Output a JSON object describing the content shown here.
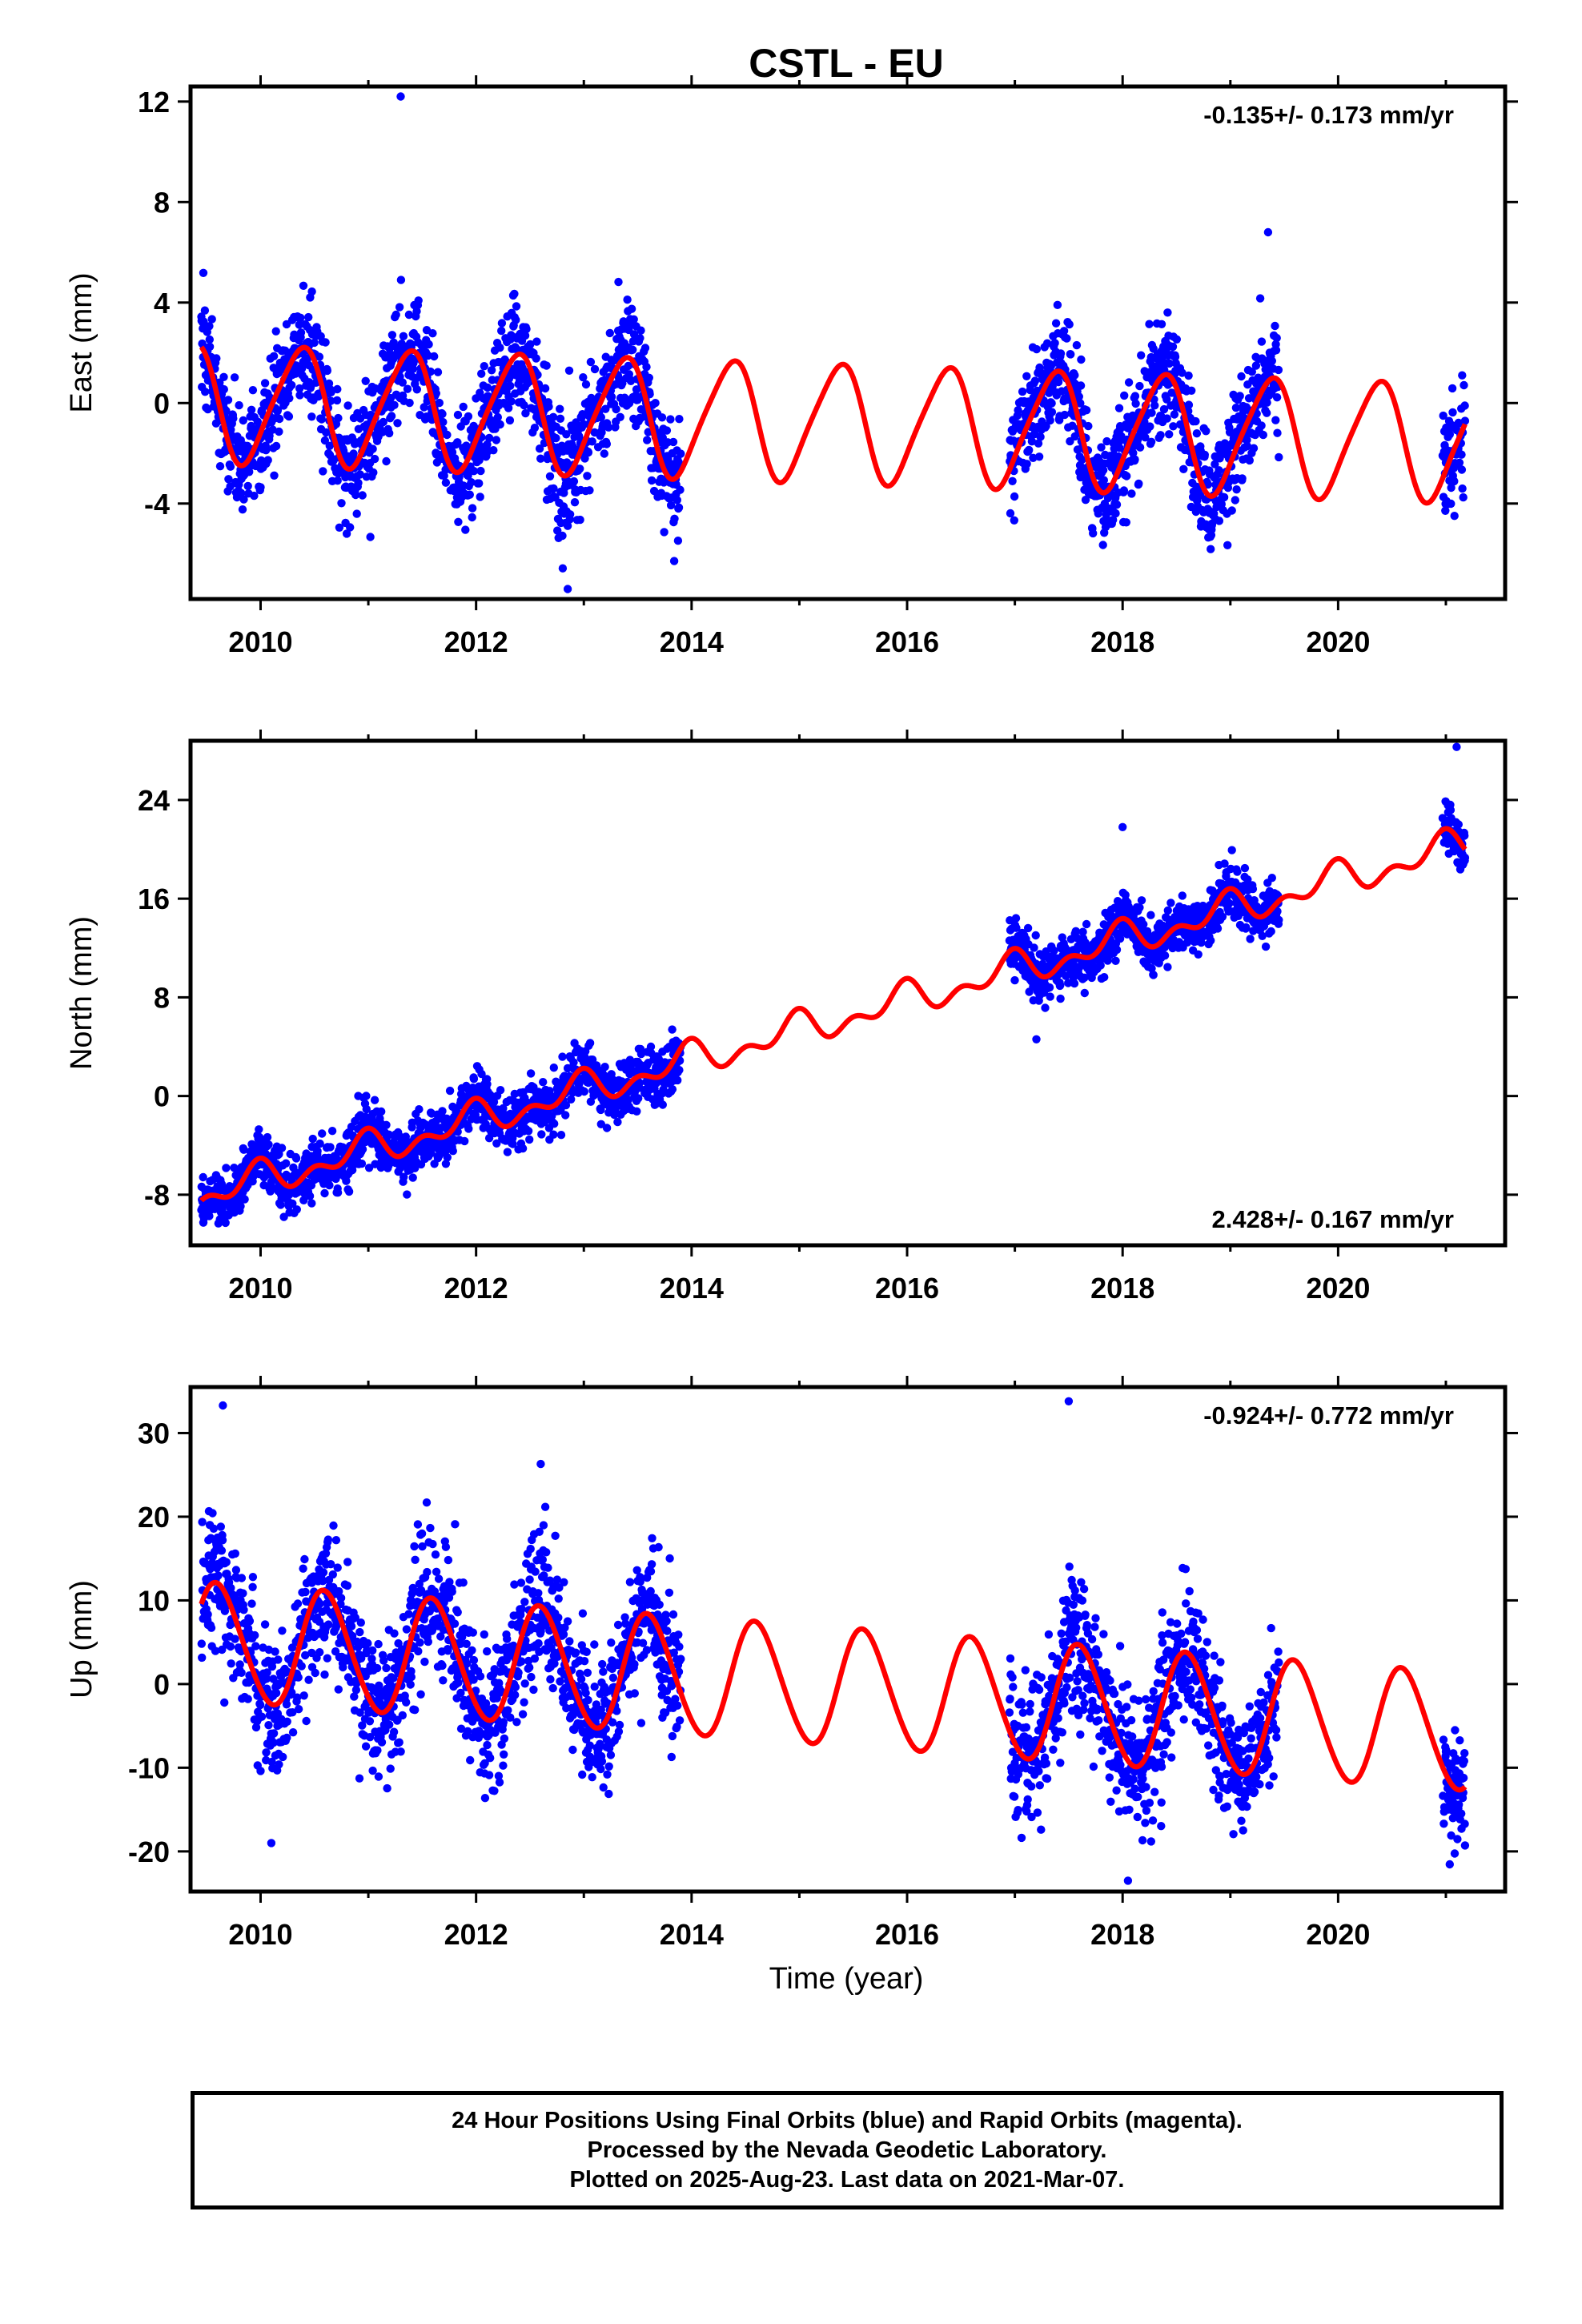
{
  "figure": {
    "title": "CSTL - EU",
    "xlabel": "Time (year)",
    "footer": [
      "24 Hour Positions Using Final Orbits (blue) and Rapid Orbits (magenta).",
      "Processed by the Nevada Geodetic Laboratory.",
      "Plotted on 2025-Aug-23. Last data on 2021-Mar-07."
    ],
    "colors": {
      "data_points": "#0000ff",
      "model_fit": "#ff0000",
      "frame": "#000000"
    }
  },
  "chart_data": [
    {
      "type": "scatter",
      "panel": "east",
      "ylabel": "East (mm)",
      "annotation": "-0.135+/- 0.173 mm/yr",
      "annotation_position": "top-right",
      "xlim": [
        2009.35,
        2021.55
      ],
      "ylim": [
        -7.8,
        12.6
      ],
      "xticks": [
        2010,
        2012,
        2014,
        2016,
        2018,
        2020
      ],
      "yticks": [
        -4,
        0,
        4,
        8,
        12
      ],
      "data_periods": [
        [
          2009.45,
          2013.9
        ],
        [
          2016.95,
          2019.45
        ],
        [
          2020.97,
          2021.18
        ]
      ],
      "model": {
        "rate_mm_per_yr": -0.135,
        "intercept_mm": 0.0,
        "annual_amplitude_mm": 2.3,
        "annual_phase_peak_year_fraction": 0.36,
        "semiannual_amplitude_mm": 0.35
      },
      "outliers": [
        {
          "x": 2011.3,
          "y": 12.2
        },
        {
          "x": 2012.85,
          "y": -7.4
        },
        {
          "x": 2019.35,
          "y": 6.8
        }
      ],
      "series": [
        {
          "name": "",
          "kind": "points",
          "scatter_sd_mm": 1.1
        },
        {
          "name": "",
          "kind": "fit"
        }
      ]
    },
    {
      "type": "scatter",
      "panel": "north",
      "ylabel": "North (mm)",
      "annotation": "2.428+/- 0.167 mm/yr",
      "annotation_position": "bottom-right",
      "xlim": [
        2009.35,
        2021.55
      ],
      "ylim": [
        -12.1,
        28.8
      ],
      "xticks": [
        2010,
        2012,
        2014,
        2016,
        2018,
        2020
      ],
      "yticks": [
        -8,
        0,
        8,
        16,
        24
      ],
      "data_periods": [
        [
          2009.45,
          2013.9
        ],
        [
          2016.95,
          2019.45
        ],
        [
          2020.97,
          2021.18
        ]
      ],
      "model": {
        "rate_mm_per_yr": 2.428,
        "intercept_mm": -8.0,
        "annual_amplitude_mm": 1.0,
        "annual_phase_peak_year_fraction": 0.95,
        "semiannual_amplitude_mm": 0.8
      },
      "outliers": [
        {
          "x": 2021.1,
          "y": 28.3
        },
        {
          "x": 2018.0,
          "y": 21.8
        },
        {
          "x": 2017.2,
          "y": 4.6
        }
      ],
      "series": [
        {
          "name": "",
          "kind": "points",
          "scatter_sd_mm": 1.1
        },
        {
          "name": "",
          "kind": "fit"
        }
      ]
    },
    {
      "type": "scatter",
      "panel": "up",
      "ylabel": "Up (mm)",
      "annotation": "-0.924+/- 0.772 mm/yr",
      "annotation_position": "top-right",
      "xlim": [
        2009.35,
        2021.55
      ],
      "ylim": [
        -24.8,
        35.5
      ],
      "xticks": [
        2010,
        2012,
        2014,
        2016,
        2018,
        2020
      ],
      "yticks": [
        -20,
        -10,
        0,
        10,
        20,
        30
      ],
      "data_periods": [
        [
          2009.45,
          2013.9
        ],
        [
          2016.95,
          2019.45
        ],
        [
          2020.97,
          2021.18
        ]
      ],
      "model": {
        "rate_mm_per_yr": -0.924,
        "intercept_mm": 5.0,
        "annual_amplitude_mm": 7.0,
        "annual_phase_peak_year_fraction": 0.6,
        "semiannual_amplitude_mm": 0.5
      },
      "outliers": [
        {
          "x": 2009.65,
          "y": 33.3
        },
        {
          "x": 2017.5,
          "y": 33.8
        },
        {
          "x": 2012.6,
          "y": 26.3
        },
        {
          "x": 2010.1,
          "y": -19.0
        },
        {
          "x": 2018.05,
          "y": -23.5
        }
      ],
      "series": [
        {
          "name": "",
          "kind": "points",
          "scatter_sd_mm": 4.0
        },
        {
          "name": "",
          "kind": "fit"
        }
      ]
    }
  ]
}
